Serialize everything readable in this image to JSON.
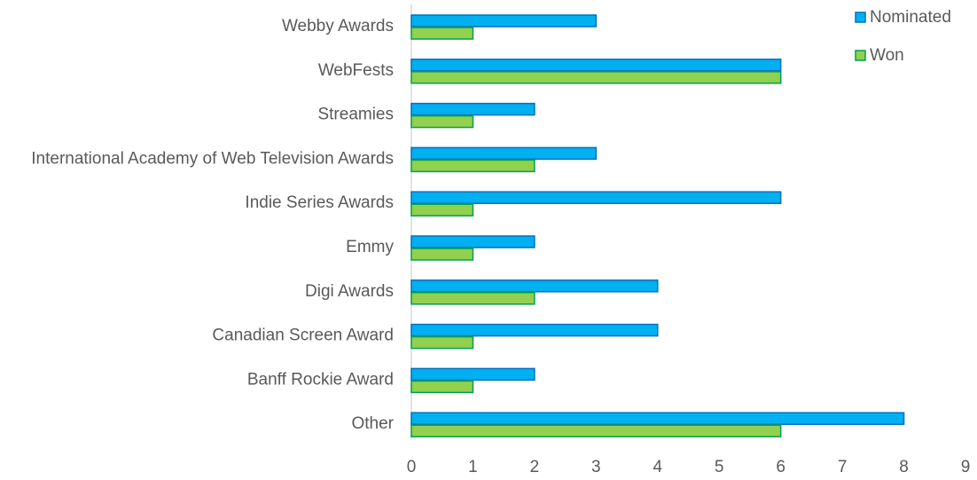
{
  "chart_data": {
    "type": "bar",
    "orientation": "horizontal",
    "categories": [
      "Webby Awards",
      "WebFests",
      "Streamies",
      "International Academy of Web Television Awards",
      "Indie Series Awards",
      "Emmy",
      "Digi Awards",
      "Canadian Screen Award",
      "Banff Rockie Award",
      "Other"
    ],
    "series": [
      {
        "name": "Nominated",
        "color": "#00b0f0",
        "values": [
          3,
          6,
          2,
          3,
          6,
          2,
          4,
          4,
          2,
          8
        ]
      },
      {
        "name": "Won",
        "color": "#92d050",
        "values": [
          1,
          6,
          1,
          2,
          1,
          1,
          2,
          1,
          1,
          6
        ]
      }
    ],
    "xlim": [
      0,
      9
    ],
    "xticks": [
      0,
      1,
      2,
      3,
      4,
      5,
      6,
      7,
      8,
      9
    ],
    "grid": false,
    "legend": "top-right"
  }
}
